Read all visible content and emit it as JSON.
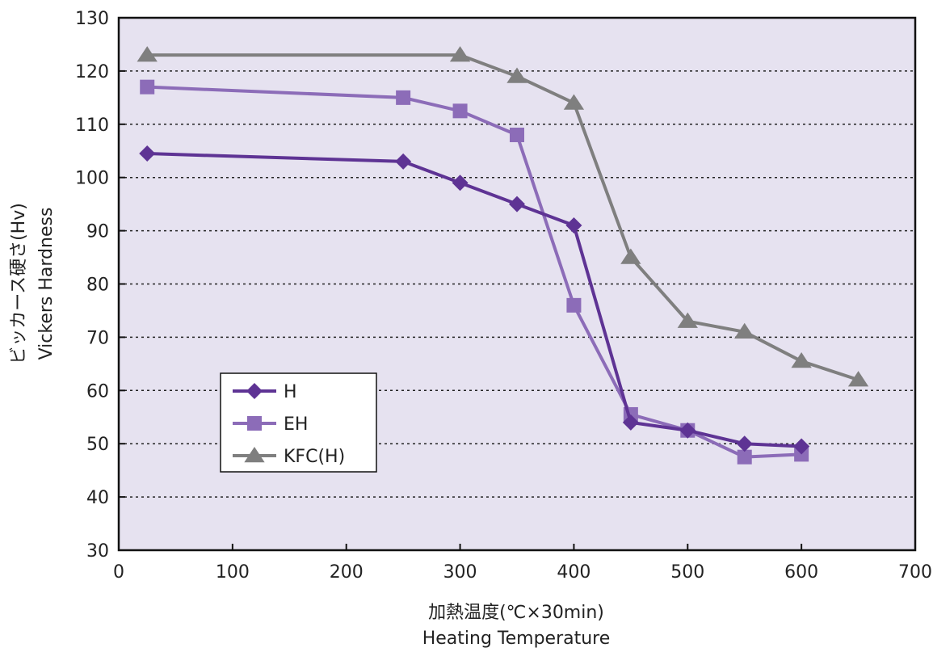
{
  "chart_data": {
    "type": "line",
    "title": "",
    "xlabel_jp": "加熱温度(℃×30min)",
    "xlabel_en": "Heating Temperature",
    "ylabel_jp": "ビッカース硬さ(Hv)",
    "ylabel_en": "Vickers Hardness",
    "xlim": [
      0,
      700
    ],
    "ylim": [
      30,
      130
    ],
    "x_ticks": [
      0,
      100,
      200,
      300,
      400,
      500,
      600,
      700
    ],
    "y_ticks": [
      30,
      40,
      50,
      60,
      70,
      80,
      90,
      100,
      110,
      120,
      130
    ],
    "grid": "horizontal-dotted",
    "plot_background": "#e6e2f0",
    "legend_position": "lower-left",
    "series": [
      {
        "name": "H",
        "color": "#5e3394",
        "marker": "diamond",
        "x": [
          25,
          250,
          300,
          350,
          400,
          450,
          500,
          550,
          600
        ],
        "y": [
          104.5,
          103,
          99,
          95,
          91,
          54,
          52.5,
          50,
          49.5
        ]
      },
      {
        "name": "EH",
        "color": "#8c6cb8",
        "marker": "square",
        "x": [
          25,
          250,
          300,
          350,
          400,
          450,
          500,
          550,
          600
        ],
        "y": [
          117,
          115,
          112.5,
          108,
          76,
          55.5,
          52.5,
          47.5,
          48
        ]
      },
      {
        "name": "KFC(H)",
        "color": "#7f7f7f",
        "marker": "triangle",
        "x": [
          25,
          300,
          350,
          400,
          450,
          500,
          550,
          600,
          650
        ],
        "y": [
          123,
          123,
          119,
          114,
          85,
          73,
          71,
          65.5,
          62
        ]
      }
    ]
  }
}
